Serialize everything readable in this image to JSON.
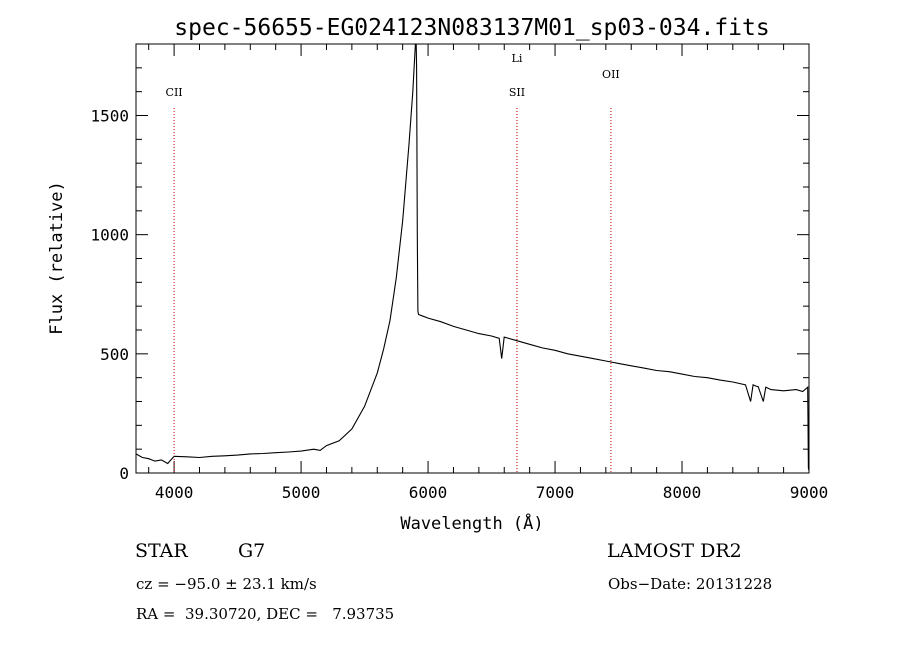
{
  "chart_data": {
    "type": "line",
    "title": "spec-56655-EG024123N083137M01_sp03-034.fits",
    "xlabel": "Wavelength (Å)",
    "ylabel": "Flux (relative)",
    "xlim": [
      3700,
      9000
    ],
    "ylim": [
      0,
      1800
    ],
    "xticks": [
      4000,
      5000,
      6000,
      7000,
      8000,
      9000
    ],
    "yticks": [
      0,
      500,
      1000,
      1500
    ],
    "grid": false,
    "line_color": "#000000",
    "marker_color": "#cc0000",
    "spectral_lines": [
      {
        "label": "CII",
        "x": 4000
      },
      {
        "label": "SII",
        "x": 6700
      },
      {
        "label": "Li",
        "x": 6700
      },
      {
        "label": "OII",
        "x": 7440
      }
    ],
    "series": [
      {
        "x": [
          3700,
          3750,
          3800,
          3850,
          3900,
          3950,
          4000,
          4100,
          4200,
          4300,
          4400,
          4500,
          4600,
          4700,
          4800,
          4900,
          5000,
          5100,
          5150,
          5200,
          5300,
          5400,
          5500,
          5600,
          5650,
          5700,
          5750,
          5800,
          5850,
          5880,
          5900,
          5905,
          5910,
          5915,
          5920,
          5925,
          5950,
          6000,
          6100,
          6200,
          6300,
          6400,
          6500,
          6560,
          6580,
          6600,
          6700,
          6800,
          6900,
          7000,
          7100,
          7200,
          7300,
          7400,
          7500,
          7600,
          7700,
          7800,
          7900,
          8000,
          8100,
          8200,
          8300,
          8400,
          8500,
          8540,
          8560,
          8580,
          8600,
          8640,
          8660,
          8680,
          8700,
          8800,
          8900,
          8950,
          8990,
          8995,
          9000
        ],
        "y": [
          80,
          65,
          60,
          50,
          55,
          40,
          70,
          68,
          65,
          70,
          72,
          75,
          80,
          82,
          85,
          88,
          92,
          100,
          95,
          115,
          135,
          185,
          280,
          420,
          520,
          640,
          820,
          1060,
          1380,
          1600,
          1800,
          1850,
          1700,
          1000,
          680,
          665,
          660,
          650,
          635,
          615,
          600,
          585,
          575,
          565,
          480,
          570,
          555,
          540,
          525,
          515,
          500,
          490,
          480,
          470,
          460,
          450,
          440,
          430,
          425,
          415,
          405,
          400,
          390,
          382,
          370,
          300,
          370,
          365,
          362,
          300,
          360,
          355,
          350,
          345,
          350,
          342,
          360,
          20,
          10
        ]
      }
    ]
  },
  "info": {
    "object_class": "STAR",
    "subclass": "G7",
    "survey": "LAMOST DR2",
    "redshift": "cz = −95.0 ± 23.1 km/s",
    "obs_date": "Obs−Date: 20131228",
    "coordinates": "RA =  39.30720, DEC =   7.93735"
  }
}
